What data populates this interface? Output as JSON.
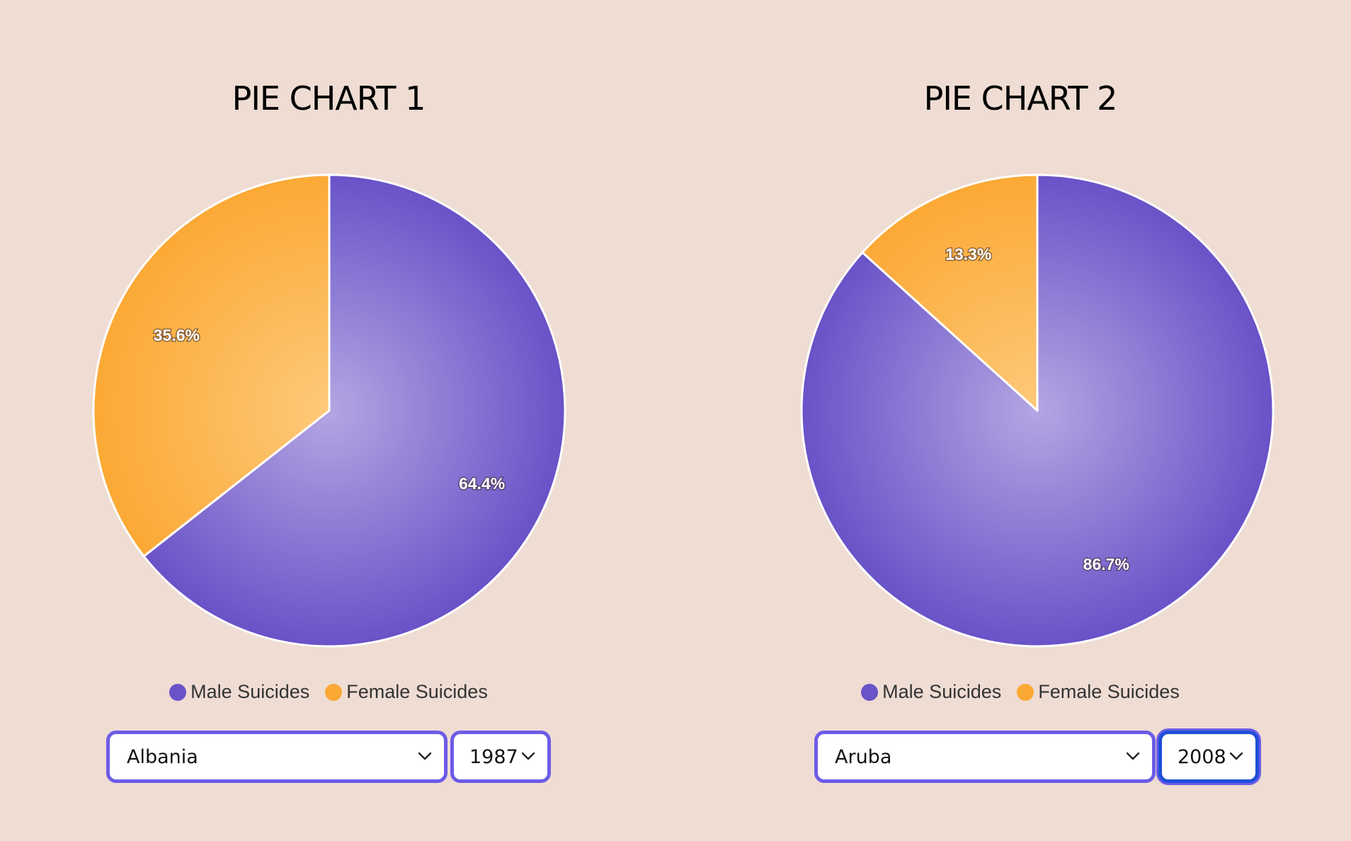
{
  "page": {
    "background": "#efdcd3"
  },
  "colors": {
    "male": "#6a52c8",
    "male_center": "#b3a6e2",
    "female": "#fba935",
    "female_center": "#fec97a",
    "select_border": "#6c5ce7",
    "select_focus_border": "#1f4fd8"
  },
  "charts": [
    {
      "title": "PIE CHART 1",
      "country": "Albania",
      "year": "1987",
      "legend": [
        "Male Suicides",
        "Female Suicides"
      ]
    },
    {
      "title": "PIE CHART 2",
      "country": "Aruba",
      "year": "2008",
      "legend": [
        "Male Suicides",
        "Female Suicides"
      ]
    }
  ],
  "icons": {
    "dropdown": "chevron-down-icon"
  },
  "chart_data": [
    {
      "type": "pie",
      "title": "PIE CHART 1",
      "categories": [
        "Male Suicides",
        "Female Suicides"
      ],
      "values": [
        64.4,
        35.6
      ],
      "labels": [
        "64.4%",
        "35.6%"
      ],
      "start": "12 o'clock",
      "direction": "clockwise",
      "legend_position": "bottom"
    },
    {
      "type": "pie",
      "title": "PIE CHART 2",
      "categories": [
        "Male Suicides",
        "Female Suicides"
      ],
      "values": [
        86.7,
        13.3
      ],
      "labels": [
        "86.7%",
        "13.3%"
      ],
      "start": "12 o'clock",
      "direction": "clockwise",
      "legend_position": "bottom"
    }
  ]
}
